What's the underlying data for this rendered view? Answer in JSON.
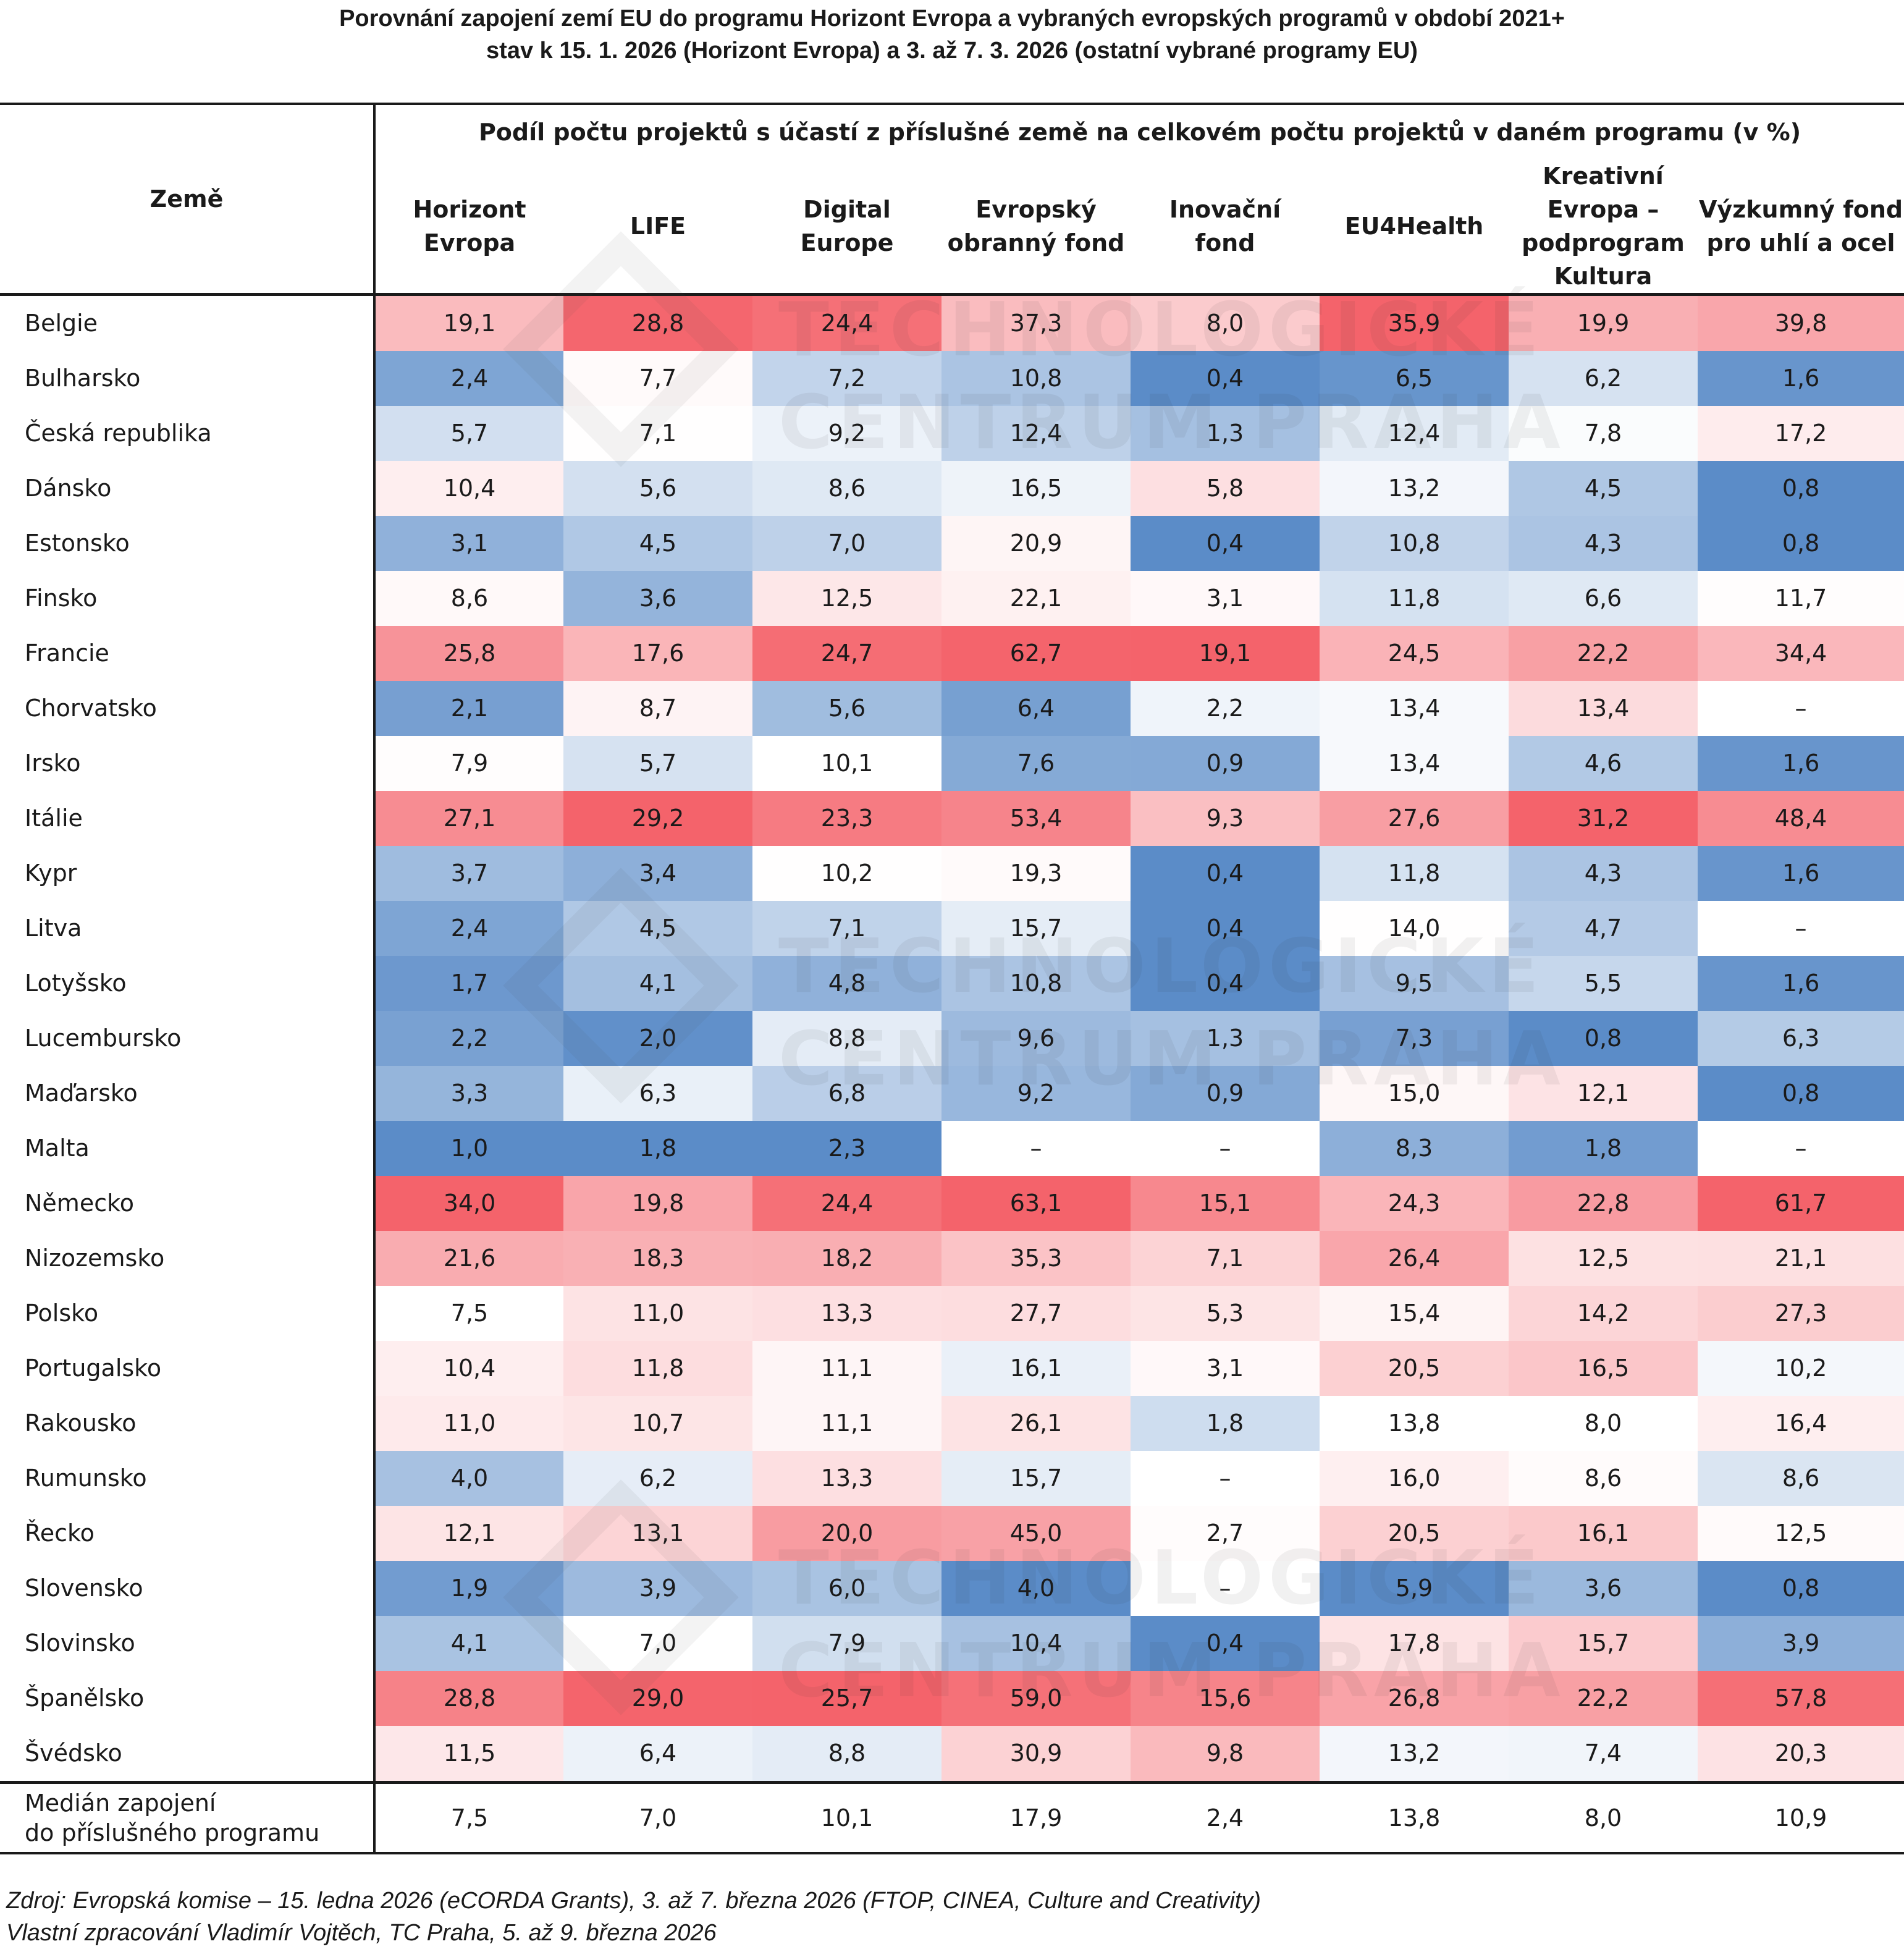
{
  "title_line1": "Porovnání zapojení zemí EU do programu Horizont Evropa a vybraných evropských programů v období 2021+",
  "title_line2": "stav k 15. 1. 2026 (Horizont Evropa) a 3. až 7. 3. 2026 (ostatní vybrané programy EU)",
  "header": {
    "country_label": "Země",
    "group_label": "Podíl počtu projektů s účastí z příslušné země na celkovém počtu projektů v daném programu (v %)"
  },
  "watermark": {
    "line1": "TECHNOLOGICKÉ",
    "line2": "CENTRUM PRAHA"
  },
  "colors": {
    "low": "#5b8cc8",
    "mid": "#ffffff",
    "high": "#f4636b",
    "border": "#1a1a1a"
  },
  "chart_data": {
    "type": "heatmap",
    "title": "Porovnání zapojení zemí EU do programu Horizont Evropa a vybraných evropských programů v období 2021+",
    "columns": [
      [
        "Horizont",
        "Evropa"
      ],
      [
        "LIFE"
      ],
      [
        "Digital",
        "Europe"
      ],
      [
        "Evropský",
        "obranný fond"
      ],
      [
        "Inovační",
        "fond"
      ],
      [
        "EU4Health"
      ],
      [
        "Kreativní",
        "Evropa –",
        "podprogram",
        "Kultura"
      ],
      [
        "Výzkumný fond",
        "pro uhlí a ocel"
      ]
    ],
    "rows": [
      {
        "country": "Belgie",
        "values": [
          19.1,
          28.8,
          24.4,
          37.3,
          8.0,
          35.9,
          19.9,
          39.8
        ]
      },
      {
        "country": "Bulharsko",
        "values": [
          2.4,
          7.7,
          7.2,
          10.8,
          0.4,
          6.5,
          6.2,
          1.6
        ]
      },
      {
        "country": "Česká republika",
        "values": [
          5.7,
          7.1,
          9.2,
          12.4,
          1.3,
          12.4,
          7.8,
          17.2
        ]
      },
      {
        "country": "Dánsko",
        "values": [
          10.4,
          5.6,
          8.6,
          16.5,
          5.8,
          13.2,
          4.5,
          0.8
        ]
      },
      {
        "country": "Estonsko",
        "values": [
          3.1,
          4.5,
          7.0,
          20.9,
          0.4,
          10.8,
          4.3,
          0.8
        ]
      },
      {
        "country": "Finsko",
        "values": [
          8.6,
          3.6,
          12.5,
          22.1,
          3.1,
          11.8,
          6.6,
          11.7
        ]
      },
      {
        "country": "Francie",
        "values": [
          25.8,
          17.6,
          24.7,
          62.7,
          19.1,
          24.5,
          22.2,
          34.4
        ]
      },
      {
        "country": "Chorvatsko",
        "values": [
          2.1,
          8.7,
          5.6,
          6.4,
          2.2,
          13.4,
          13.4,
          null
        ]
      },
      {
        "country": "Irsko",
        "values": [
          7.9,
          5.7,
          10.1,
          7.6,
          0.9,
          13.4,
          4.6,
          1.6
        ]
      },
      {
        "country": "Itálie",
        "values": [
          27.1,
          29.2,
          23.3,
          53.4,
          9.3,
          27.6,
          31.2,
          48.4
        ]
      },
      {
        "country": "Kypr",
        "values": [
          3.7,
          3.4,
          10.2,
          19.3,
          0.4,
          11.8,
          4.3,
          1.6
        ]
      },
      {
        "country": "Litva",
        "values": [
          2.4,
          4.5,
          7.1,
          15.7,
          0.4,
          14.0,
          4.7,
          null
        ]
      },
      {
        "country": "Lotyšsko",
        "values": [
          1.7,
          4.1,
          4.8,
          10.8,
          0.4,
          9.5,
          5.5,
          1.6
        ]
      },
      {
        "country": "Lucembursko",
        "values": [
          2.2,
          2.0,
          8.8,
          9.6,
          1.3,
          7.3,
          0.8,
          6.3
        ]
      },
      {
        "country": "Maďarsko",
        "values": [
          3.3,
          6.3,
          6.8,
          9.2,
          0.9,
          15.0,
          12.1,
          0.8
        ]
      },
      {
        "country": "Malta",
        "values": [
          1.0,
          1.8,
          2.3,
          null,
          null,
          8.3,
          1.8,
          null
        ]
      },
      {
        "country": "Německo",
        "values": [
          34.0,
          19.8,
          24.4,
          63.1,
          15.1,
          24.3,
          22.8,
          61.7
        ]
      },
      {
        "country": "Nizozemsko",
        "values": [
          21.6,
          18.3,
          18.2,
          35.3,
          7.1,
          26.4,
          12.5,
          21.1
        ]
      },
      {
        "country": "Polsko",
        "values": [
          7.5,
          11.0,
          13.3,
          27.7,
          5.3,
          15.4,
          14.2,
          27.3
        ]
      },
      {
        "country": "Portugalsko",
        "values": [
          10.4,
          11.8,
          11.1,
          16.1,
          3.1,
          20.5,
          16.5,
          10.2
        ]
      },
      {
        "country": "Rakousko",
        "values": [
          11.0,
          10.7,
          11.1,
          26.1,
          1.8,
          13.8,
          8.0,
          16.4
        ]
      },
      {
        "country": "Rumunsko",
        "values": [
          4.0,
          6.2,
          13.3,
          15.7,
          null,
          16.0,
          8.6,
          8.6
        ]
      },
      {
        "country": "Řecko",
        "values": [
          12.1,
          13.1,
          20.0,
          45.0,
          2.7,
          20.5,
          16.1,
          12.5
        ]
      },
      {
        "country": "Slovensko",
        "values": [
          1.9,
          3.9,
          6.0,
          4.0,
          null,
          5.9,
          3.6,
          0.8
        ]
      },
      {
        "country": "Slovinsko",
        "values": [
          4.1,
          7.0,
          7.9,
          10.4,
          0.4,
          17.8,
          15.7,
          3.9
        ]
      },
      {
        "country": "Španělsko",
        "values": [
          28.8,
          29.0,
          25.7,
          59.0,
          15.6,
          26.8,
          22.2,
          57.8
        ]
      },
      {
        "country": "Švédsko",
        "values": [
          11.5,
          6.4,
          8.8,
          30.9,
          9.8,
          13.2,
          7.4,
          20.3
        ]
      }
    ],
    "median": {
      "label_line1": "Medián zapojení",
      "label_line2": "do příslušného programu",
      "values": [
        7.5,
        7.0,
        10.1,
        17.9,
        2.4,
        13.8,
        8.0,
        10.9
      ]
    },
    "missing_symbol": "–",
    "decimal_separator": ","
  },
  "footer": {
    "line1": "Zdroj: Evropská komise – 15. ledna 2026 (eCORDA Grants), 3. až 7. března 2026 (FTOP, CINEA, Culture and Creativity)",
    "line2": "Vlastní zpracování Vladimír Vojtěch, TC Praha, 5. až 9. března 2026"
  }
}
